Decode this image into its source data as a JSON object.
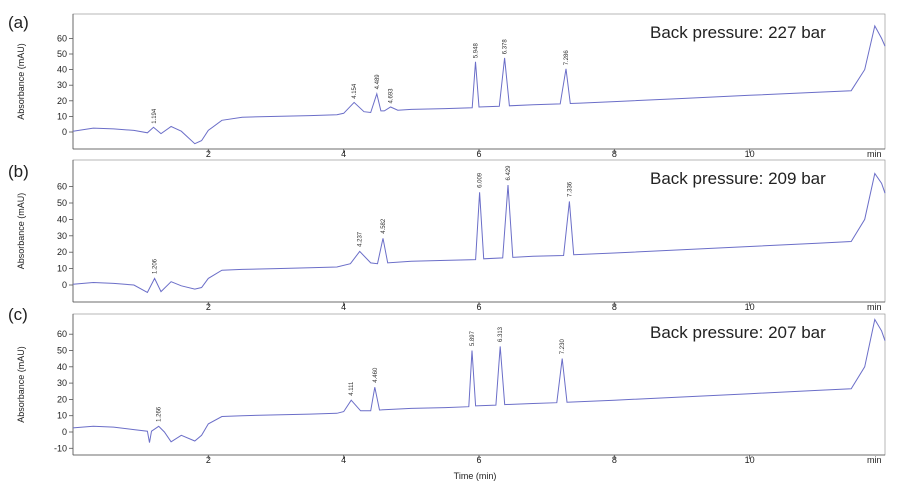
{
  "chart_data": [
    {
      "type": "line",
      "panel_label": "(a)",
      "annotation": "Back pressure: 227 bar",
      "ylabel": "Absorbance (mAU)",
      "xunit": "min",
      "xlim": [
        0,
        12
      ],
      "ylim": [
        -8,
        72
      ],
      "xticks": [
        2,
        4,
        6,
        8,
        10
      ],
      "yticks": [
        0,
        10,
        20,
        30,
        40,
        50,
        60
      ],
      "series": [
        {
          "x": [
            0.0,
            0.3,
            0.6,
            0.9,
            1.1,
            1.19,
            1.3,
            1.45,
            1.6,
            1.8,
            1.9,
            2.0,
            2.2,
            2.5,
            3.0,
            3.5,
            3.9,
            4.0,
            4.154,
            4.3,
            4.4,
            4.489,
            4.55,
            4.6,
            4.693,
            4.8,
            5.0,
            5.5,
            5.9,
            5.948,
            6.0,
            6.3,
            6.378,
            6.45,
            6.8,
            7.2,
            7.286,
            7.35,
            7.5,
            8.0,
            9.0,
            10.0,
            11.0,
            11.5,
            11.7,
            11.85,
            11.95,
            12.0
          ],
          "y": [
            0.5,
            2.5,
            2.0,
            1.0,
            -0.5,
            3.0,
            -1.0,
            3.5,
            0.5,
            -7.5,
            -5.5,
            1.0,
            7.5,
            9.5,
            10.0,
            10.5,
            11.0,
            12.0,
            19.0,
            13.0,
            12.5,
            24.5,
            13.5,
            13.5,
            16.0,
            14.0,
            14.5,
            15.0,
            15.5,
            45.0,
            16.0,
            16.5,
            47.5,
            16.8,
            17.5,
            18.0,
            40.5,
            18.3,
            18.5,
            19.5,
            21.5,
            23.5,
            25.5,
            26.5,
            40.0,
            68.0,
            60.0,
            55.0
          ]
        }
      ],
      "peak_labels": [
        {
          "x": 1.194,
          "y": 4.0,
          "text": "1.194"
        },
        {
          "x": 4.154,
          "y": 20.0,
          "text": "4.154"
        },
        {
          "x": 4.489,
          "y": 26.0,
          "text": "4.489"
        },
        {
          "x": 4.693,
          "y": 17.0,
          "text": "4.693"
        },
        {
          "x": 5.948,
          "y": 46.0,
          "text": "5.948"
        },
        {
          "x": 6.378,
          "y": 48.5,
          "text": "6.378"
        },
        {
          "x": 7.286,
          "y": 41.5,
          "text": "7.286"
        }
      ]
    },
    {
      "type": "line",
      "panel_label": "(b)",
      "annotation": "Back pressure: 209 bar",
      "ylabel": "Absorbance (mAU)",
      "xunit": "min",
      "xlim": [
        0,
        12
      ],
      "ylim": [
        -10,
        72
      ],
      "xticks": [
        2,
        4,
        6,
        8,
        10
      ],
      "yticks": [
        0,
        10,
        20,
        30,
        40,
        50,
        60
      ],
      "series": [
        {
          "x": [
            0.0,
            0.3,
            0.6,
            0.9,
            1.1,
            1.206,
            1.3,
            1.45,
            1.6,
            1.8,
            1.9,
            2.0,
            2.2,
            2.5,
            3.0,
            3.5,
            3.9,
            4.1,
            4.237,
            4.4,
            4.5,
            4.582,
            4.65,
            5.0,
            5.5,
            5.95,
            6.009,
            6.07,
            6.35,
            6.429,
            6.5,
            6.8,
            7.25,
            7.336,
            7.4,
            8.0,
            9.0,
            10.0,
            11.0,
            11.5,
            11.7,
            11.85,
            11.95,
            12.0
          ],
          "y": [
            0.5,
            1.5,
            1.0,
            0.0,
            -4.5,
            4.0,
            -4.0,
            2.0,
            -0.5,
            -2.5,
            -1.5,
            4.0,
            9.0,
            9.5,
            10.0,
            10.5,
            11.0,
            13.0,
            20.5,
            13.5,
            13.0,
            28.5,
            13.5,
            14.5,
            15.0,
            15.5,
            56.5,
            16.0,
            16.5,
            61.0,
            16.8,
            17.5,
            18.0,
            51.0,
            18.5,
            19.5,
            21.5,
            23.5,
            25.5,
            26.5,
            40.0,
            68.0,
            62.0,
            56.0
          ]
        }
      ],
      "peak_labels": [
        {
          "x": 1.206,
          "y": 5.5,
          "text": "1.206"
        },
        {
          "x": 4.237,
          "y": 22.0,
          "text": "4.237"
        },
        {
          "x": 4.582,
          "y": 30.0,
          "text": "4.582"
        },
        {
          "x": 6.009,
          "y": 58.0,
          "text": "6.009"
        },
        {
          "x": 6.429,
          "y": 62.5,
          "text": "6.429"
        },
        {
          "x": 7.336,
          "y": 52.5,
          "text": "7.336"
        }
      ]
    },
    {
      "type": "line",
      "panel_label": "(c)",
      "annotation": "Back pressure: 207 bar",
      "ylabel": "Absorbance (mAU)",
      "xunit": "min",
      "xlabel": "Time (min)",
      "xlim": [
        0,
        12
      ],
      "ylim": [
        -12,
        72
      ],
      "xticks": [
        2,
        4,
        6,
        8,
        10
      ],
      "yticks": [
        -10,
        0,
        10,
        20,
        30,
        40,
        50,
        60
      ],
      "series": [
        {
          "x": [
            0.0,
            0.3,
            0.6,
            0.9,
            1.1,
            1.13,
            1.16,
            1.266,
            1.35,
            1.45,
            1.6,
            1.8,
            1.9,
            2.0,
            2.2,
            2.5,
            3.0,
            3.5,
            3.9,
            4.0,
            4.111,
            4.25,
            4.4,
            4.46,
            4.53,
            5.0,
            5.5,
            5.85,
            5.897,
            5.95,
            6.25,
            6.313,
            6.38,
            6.8,
            7.15,
            7.23,
            7.3,
            8.0,
            9.0,
            10.0,
            11.0,
            11.5,
            11.7,
            11.85,
            11.95,
            12.0
          ],
          "y": [
            2.5,
            3.5,
            3.0,
            1.5,
            0.5,
            -6.5,
            0.5,
            3.5,
            0.0,
            -6.0,
            -2.0,
            -5.5,
            -2.0,
            5.0,
            9.5,
            10.0,
            10.5,
            11.0,
            11.5,
            12.5,
            19.5,
            13.0,
            13.0,
            27.5,
            13.5,
            14.5,
            15.0,
            15.5,
            50.0,
            16.0,
            16.5,
            52.5,
            16.8,
            17.5,
            18.0,
            45.0,
            18.3,
            19.5,
            21.5,
            23.5,
            25.5,
            26.5,
            40.0,
            69.0,
            62.0,
            56.0
          ]
        }
      ],
      "peak_labels": [
        {
          "x": 1.266,
          "y": 5.0,
          "text": "1.266"
        },
        {
          "x": 4.111,
          "y": 21.0,
          "text": "4.111"
        },
        {
          "x": 4.46,
          "y": 29.0,
          "text": "4.460"
        },
        {
          "x": 5.897,
          "y": 51.5,
          "text": "5.897"
        },
        {
          "x": 6.313,
          "y": 54.0,
          "text": "6.313"
        },
        {
          "x": 7.23,
          "y": 46.5,
          "text": "7.230"
        }
      ]
    }
  ]
}
